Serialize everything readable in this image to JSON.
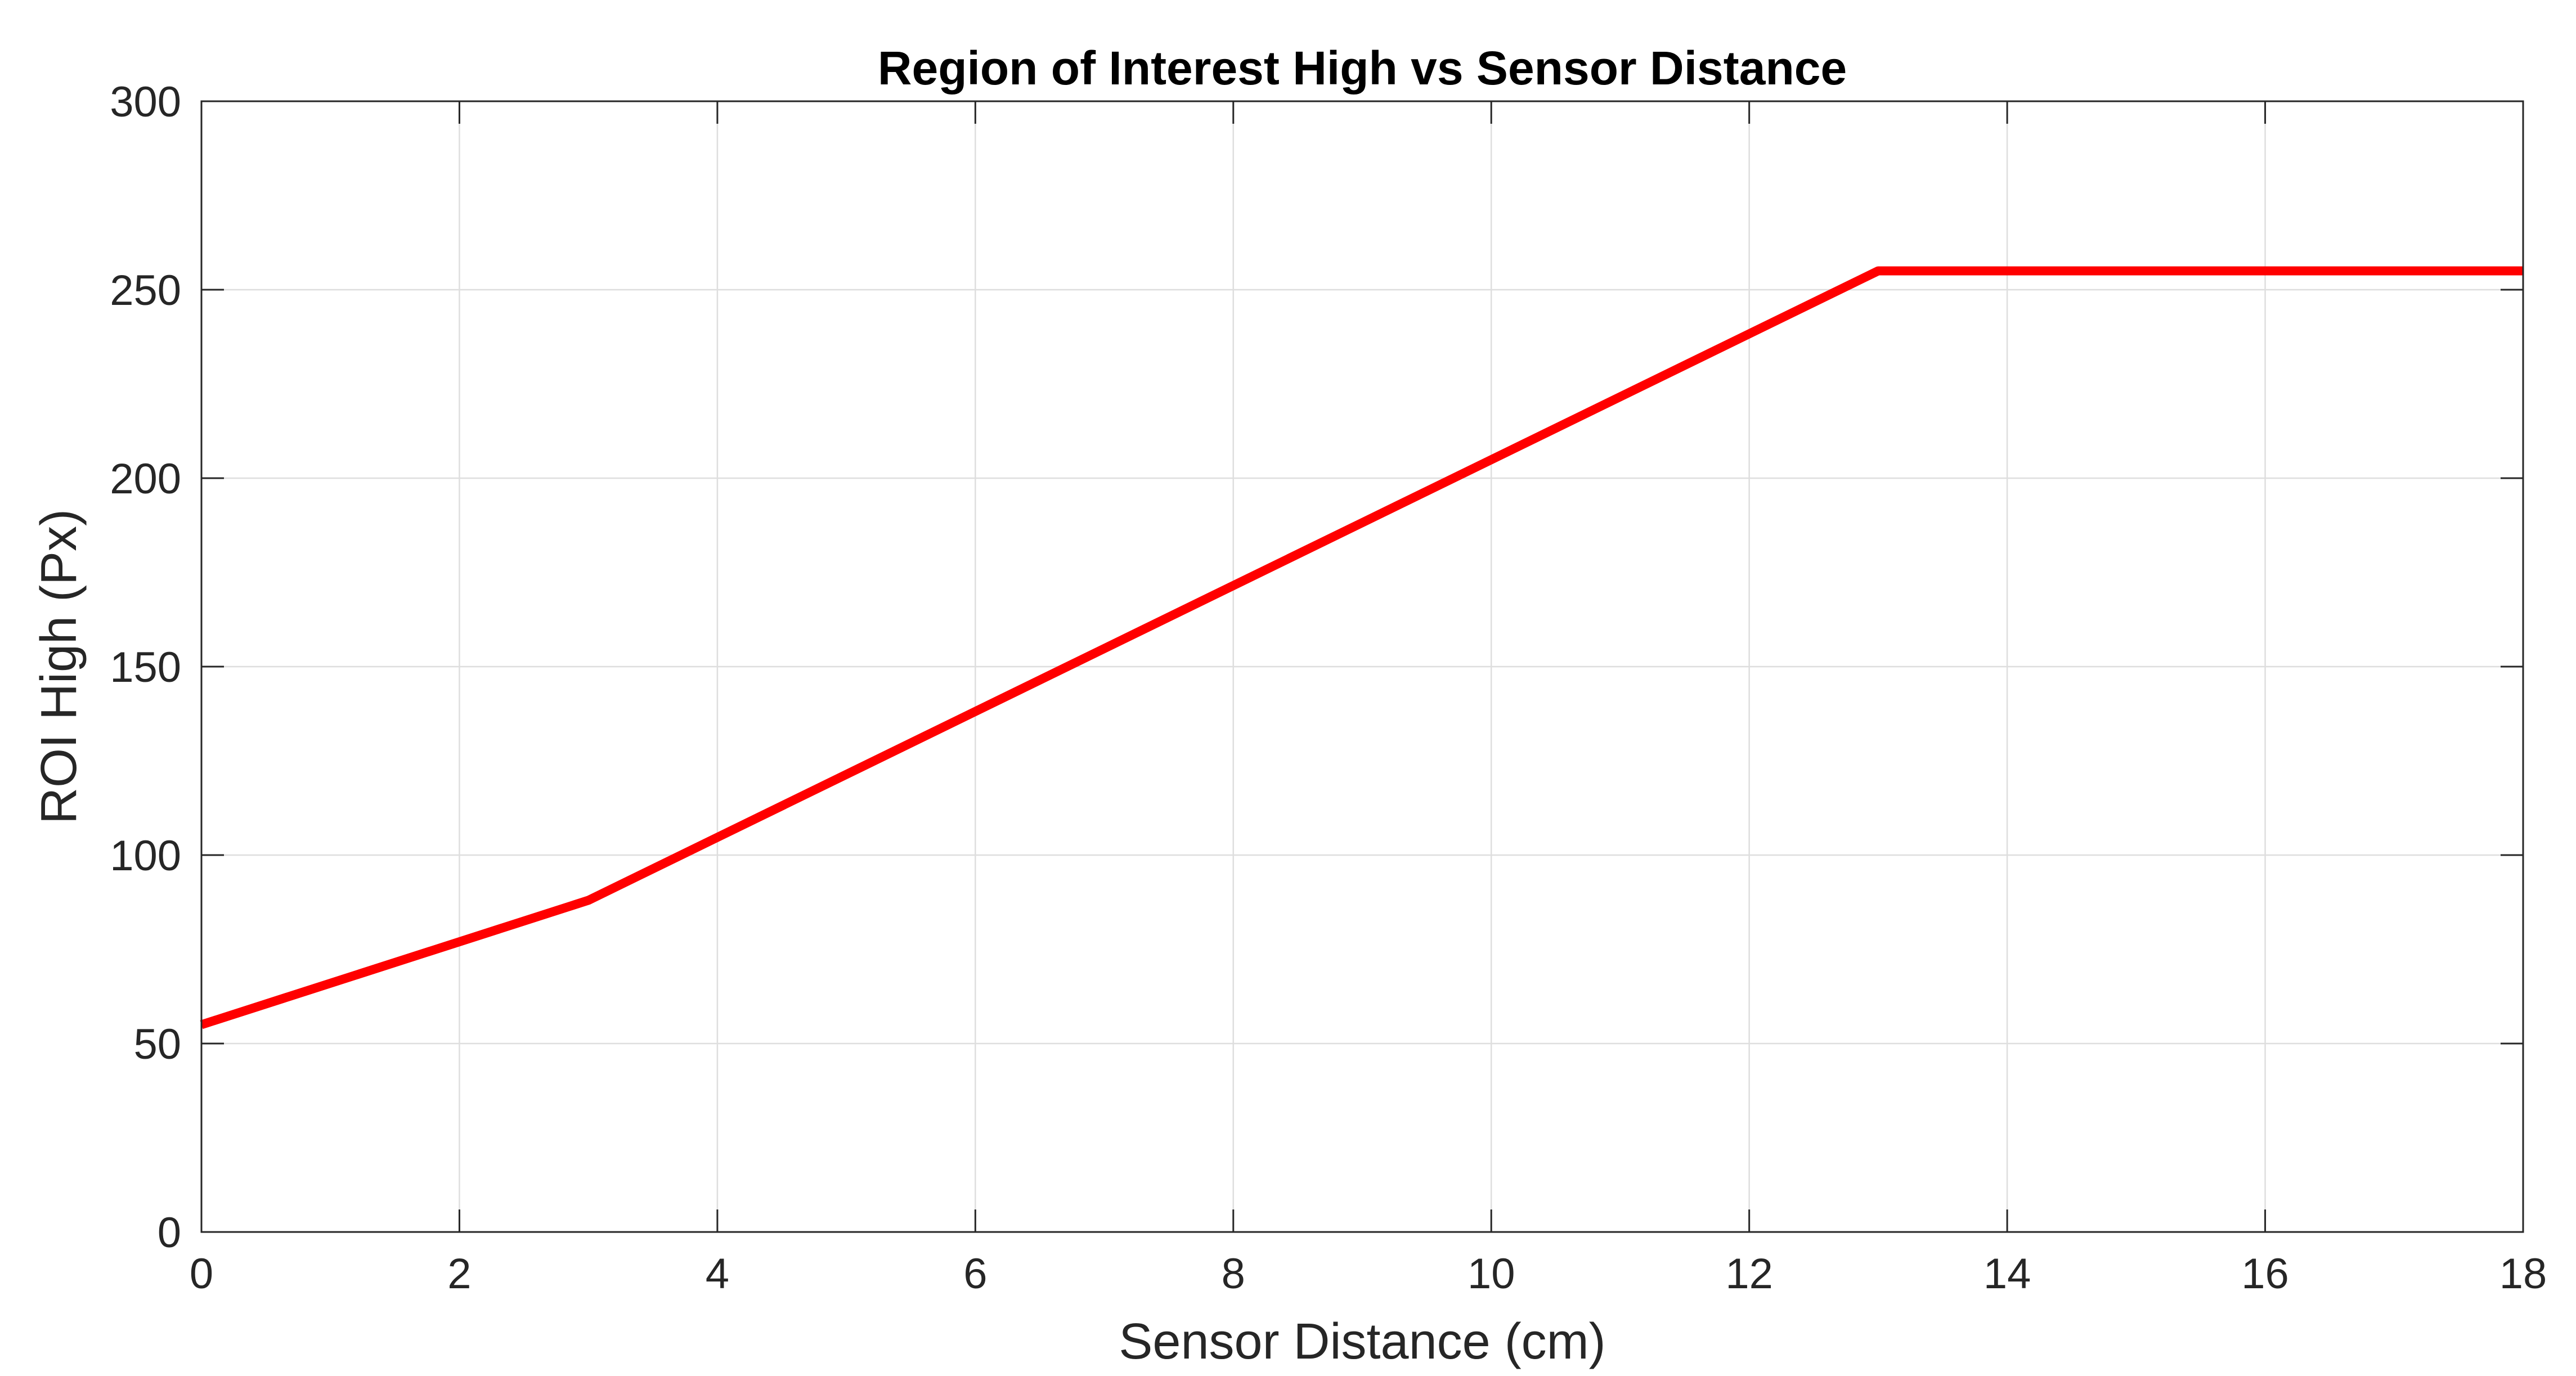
{
  "chart_data": {
    "type": "line",
    "title": "Region of Interest High vs Sensor Distance",
    "xlabel": "Sensor Distance (cm)",
    "ylabel": "ROI High (Px)",
    "xlim": [
      0,
      18
    ],
    "ylim": [
      0,
      300
    ],
    "xticks": [
      0,
      2,
      4,
      6,
      8,
      10,
      12,
      14,
      16,
      18
    ],
    "yticks": [
      0,
      50,
      100,
      150,
      200,
      250,
      300
    ],
    "grid": true,
    "series": [
      {
        "x": [
          0,
          3,
          13,
          18
        ],
        "y": [
          55,
          88,
          255,
          255
        ],
        "color": "#ff0000"
      }
    ]
  }
}
